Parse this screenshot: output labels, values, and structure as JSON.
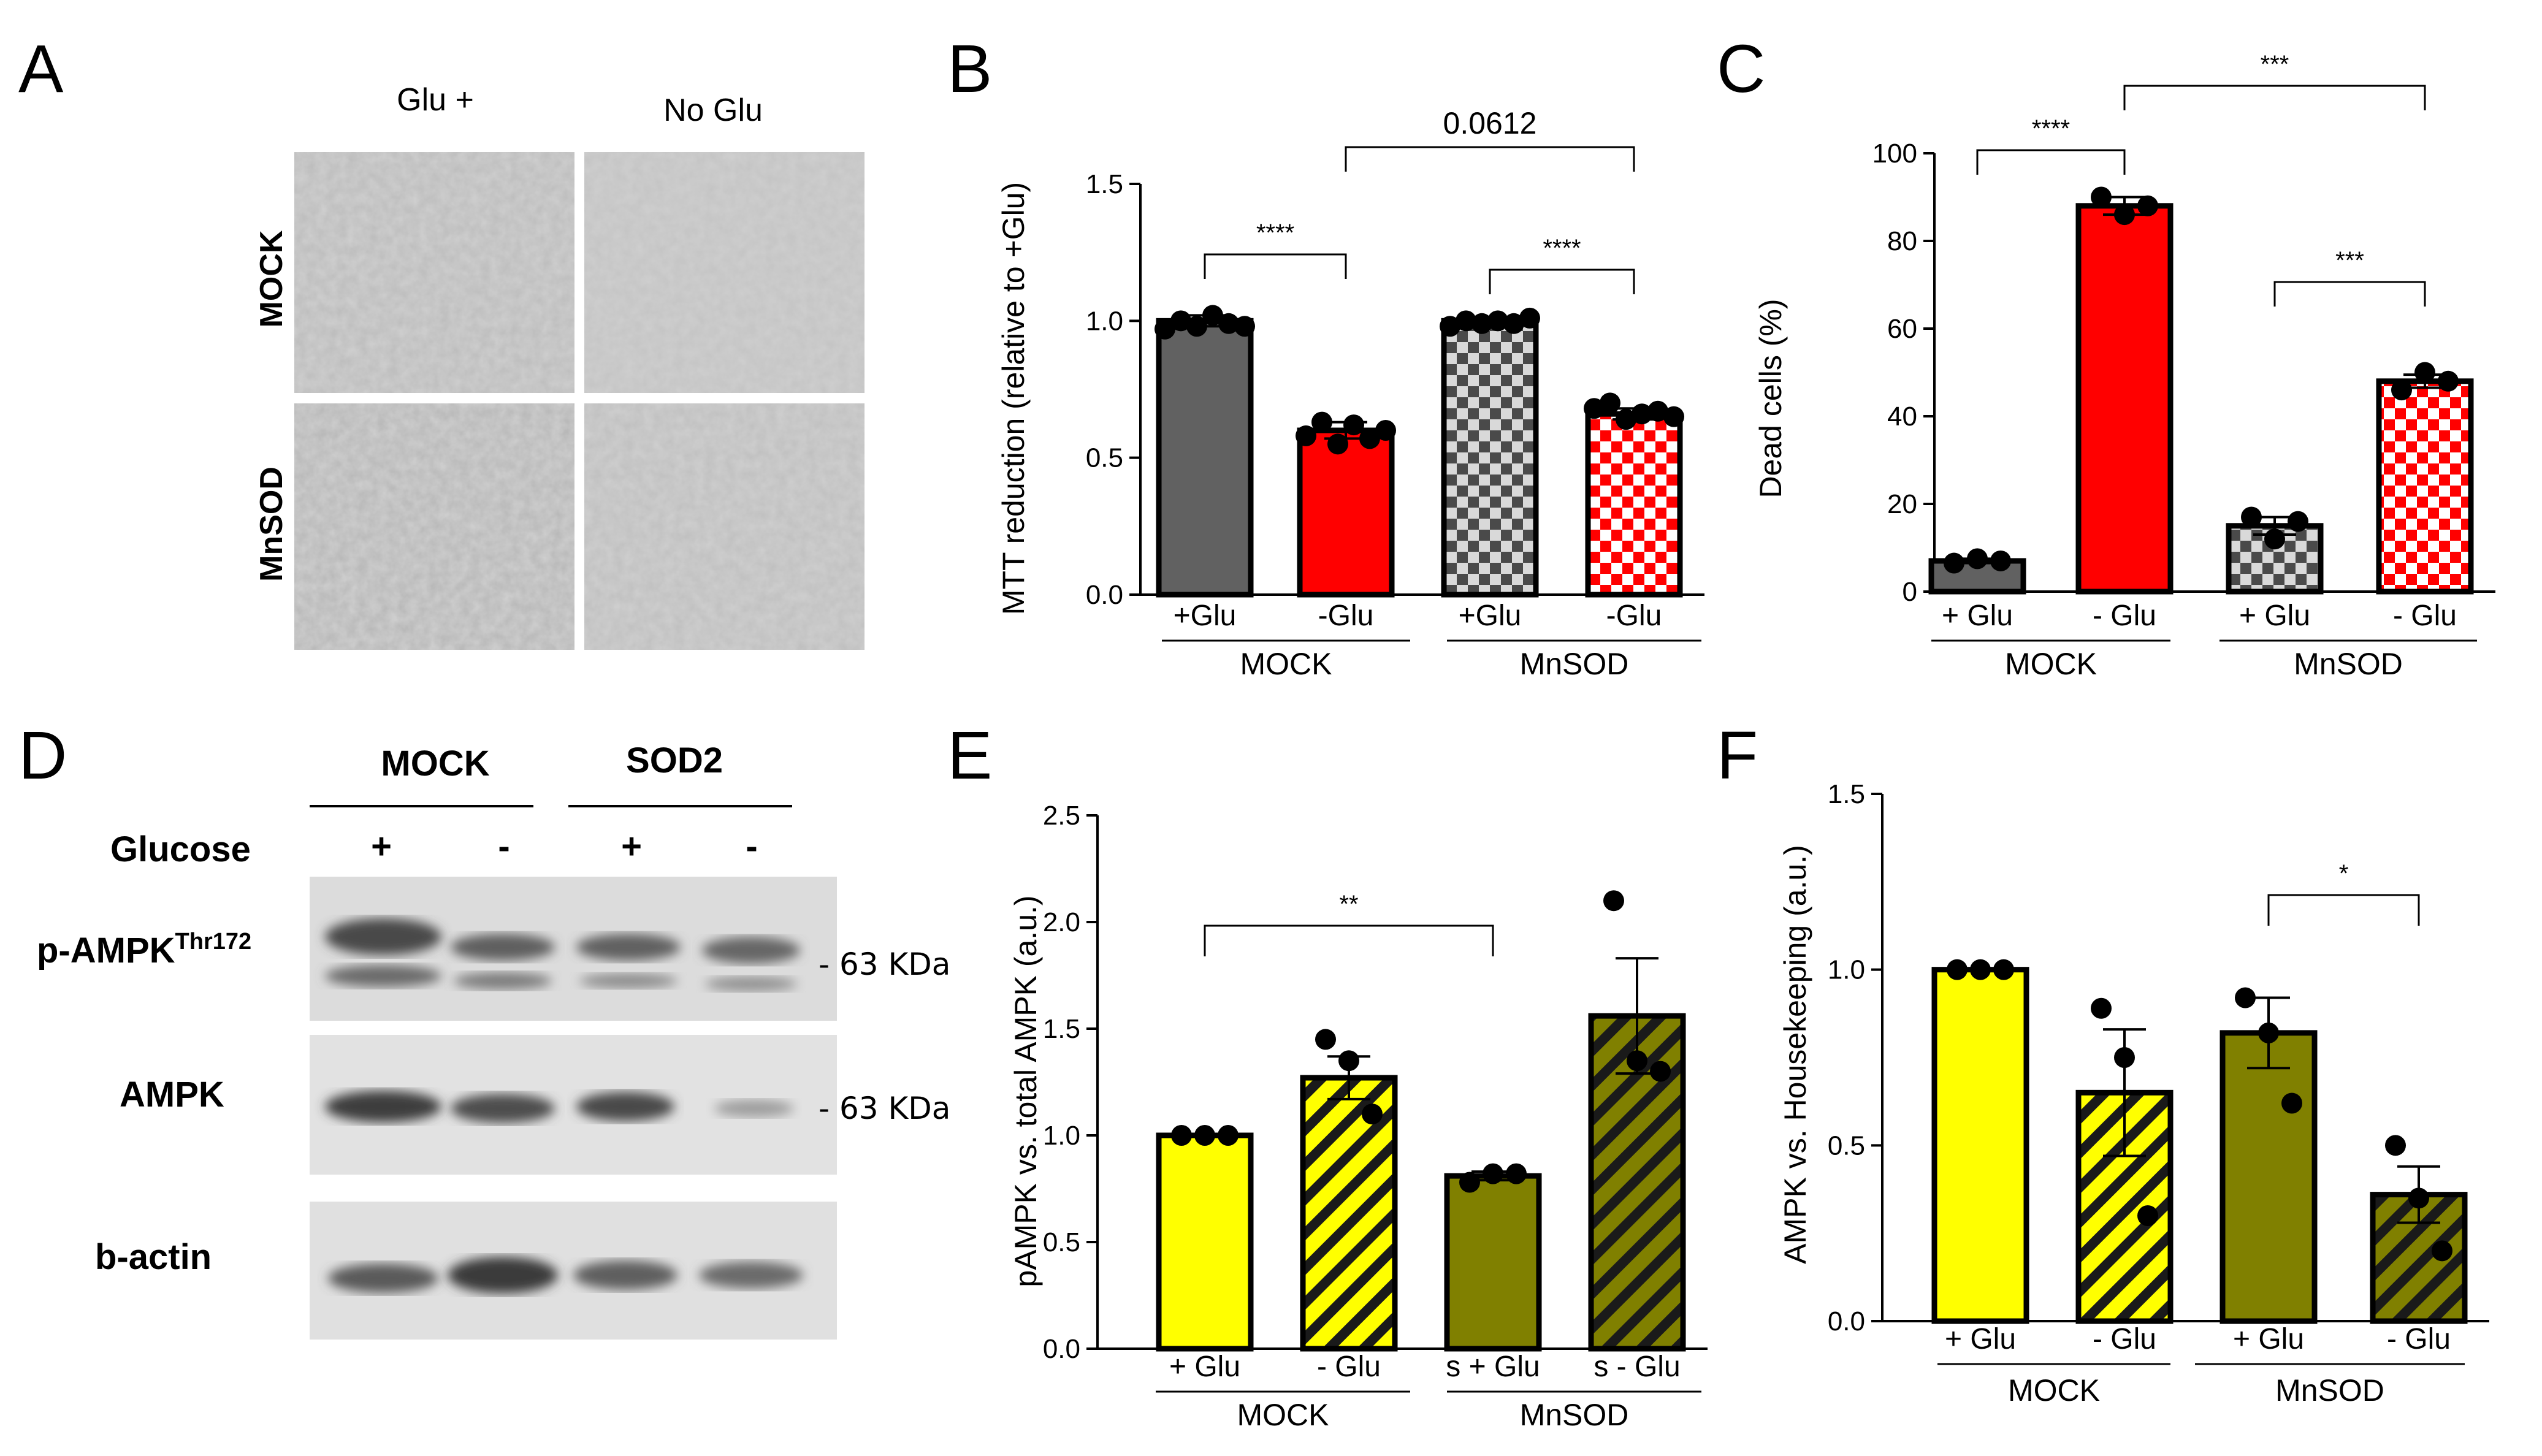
{
  "colors": {
    "gray": "#616161",
    "red": "#ff0000",
    "yellow": "#ffff00",
    "olive": "#808000",
    "dark_olive": "#3d3d0a",
    "checker_light": "#d9d9d9",
    "checker_dark": "#4a4a4a"
  },
  "panel_a": {
    "letter": "A",
    "col_labels": [
      "Glu +",
      "No Glu"
    ],
    "row_labels": [
      "MOCK",
      "MnSOD"
    ]
  },
  "panel_d": {
    "letter": "D",
    "groups": [
      "MOCK",
      "SOD2"
    ],
    "glucose_label": "Glucose",
    "signs": [
      "+",
      "-",
      "+",
      "-"
    ],
    "rows": [
      {
        "name": "p-AMPK",
        "sup": "Thr172",
        "marker": "63 KDa"
      },
      {
        "name": "AMPK",
        "sup": "",
        "marker": "63 KDa"
      },
      {
        "name": "b-actin",
        "sup": "",
        "marker": ""
      }
    ]
  },
  "chart_data": [
    {
      "panel": "B",
      "type": "bar",
      "ylabel": "MTT reduction (relative to +Glu)",
      "ylim": [
        0,
        1.5
      ],
      "yticks": [
        "0.0",
        "0.5",
        "1.0",
        "1.5"
      ],
      "categories": [
        "+Glu",
        "-Glu",
        "+Glu",
        "-Glu"
      ],
      "groups": [
        "MOCK",
        "MnSOD"
      ],
      "values": [
        1.0,
        0.6,
        1.0,
        0.66
      ],
      "errors": [
        0.02,
        0.03,
        0.01,
        0.02
      ],
      "fills": [
        "gray",
        "red",
        "checker_gray",
        "checker_red"
      ],
      "points": [
        [
          0.97,
          1.0,
          0.98,
          1.02,
          0.99,
          0.98
        ],
        [
          0.58,
          0.63,
          0.55,
          0.62,
          0.57,
          0.6
        ],
        [
          0.98,
          1.0,
          0.99,
          1.0,
          0.99,
          1.01
        ],
        [
          0.68,
          0.7,
          0.64,
          0.66,
          0.67,
          0.65
        ]
      ],
      "comparisons": [
        {
          "from": 0,
          "to": 1,
          "label": "****"
        },
        {
          "from": 2,
          "to": 3,
          "label": "****"
        },
        {
          "from": 1,
          "to": 3,
          "label": "0.0612"
        }
      ]
    },
    {
      "panel": "C",
      "type": "bar",
      "ylabel": "Dead cells (%)",
      "ylim": [
        0,
        100
      ],
      "yticks": [
        "0",
        "20",
        "40",
        "60",
        "80",
        "100"
      ],
      "categories": [
        "+ Glu",
        "- Glu",
        "+ Glu",
        "- Glu"
      ],
      "groups": [
        "MOCK",
        "MnSOD"
      ],
      "values": [
        7,
        88,
        15,
        48
      ],
      "errors": [
        0.5,
        2,
        2,
        1.5
      ],
      "fills": [
        "gray",
        "red",
        "checker_gray",
        "checker_red"
      ],
      "points": [
        [
          6.5,
          7.5,
          7
        ],
        [
          90,
          86,
          88
        ],
        [
          17,
          12,
          16
        ],
        [
          46,
          50,
          48
        ]
      ],
      "comparisons": [
        {
          "from": 0,
          "to": 1,
          "label": "****"
        },
        {
          "from": 2,
          "to": 3,
          "label": "***"
        },
        {
          "from": 1,
          "to": 3,
          "label": "***"
        }
      ]
    },
    {
      "panel": "E",
      "type": "bar",
      "ylabel": "pAMPK vs. total AMPK (a.u.)",
      "ylim": [
        0,
        2.5
      ],
      "yticks": [
        "0.0",
        "0.5",
        "1.0",
        "1.5",
        "2.0",
        "2.5"
      ],
      "categories": [
        "+ Glu",
        "- Glu",
        "s + Glu",
        "s - Glu"
      ],
      "groups": [
        "MOCK",
        "MnSOD"
      ],
      "values": [
        1.0,
        1.27,
        0.81,
        1.56
      ],
      "errors": [
        0.0,
        0.1,
        0.02,
        0.27
      ],
      "fills": [
        "yellow",
        "hatch_yellow",
        "olive",
        "hatch_olive"
      ],
      "points": [
        [
          1.0,
          1.0,
          1.0
        ],
        [
          1.45,
          1.35,
          1.1
        ],
        [
          0.78,
          0.82,
          0.82
        ],
        [
          2.1,
          1.35,
          1.3
        ]
      ],
      "comparisons": [
        {
          "from": 0,
          "to": 2,
          "label": "**"
        }
      ]
    },
    {
      "panel": "F",
      "type": "bar",
      "ylabel": "AMPK vs. Housekeeping (a.u.)",
      "ylim": [
        0,
        1.5
      ],
      "yticks": [
        "0.0",
        "0.5",
        "1.0",
        "1.5"
      ],
      "categories": [
        "+ Glu",
        "- Glu",
        "+ Glu",
        "- Glu"
      ],
      "groups": [
        "MOCK",
        "MnSOD"
      ],
      "values": [
        1.0,
        0.65,
        0.82,
        0.36
      ],
      "errors": [
        0.0,
        0.18,
        0.1,
        0.08
      ],
      "fills": [
        "yellow",
        "hatch_yellow",
        "olive",
        "hatch_olive"
      ],
      "points": [
        [
          1.0,
          1.0,
          1.0
        ],
        [
          0.89,
          0.75,
          0.3
        ],
        [
          0.92,
          0.82,
          0.62
        ],
        [
          0.5,
          0.35,
          0.2
        ]
      ],
      "comparisons": [
        {
          "from": 2,
          "to": 3,
          "label": "*"
        }
      ]
    }
  ]
}
